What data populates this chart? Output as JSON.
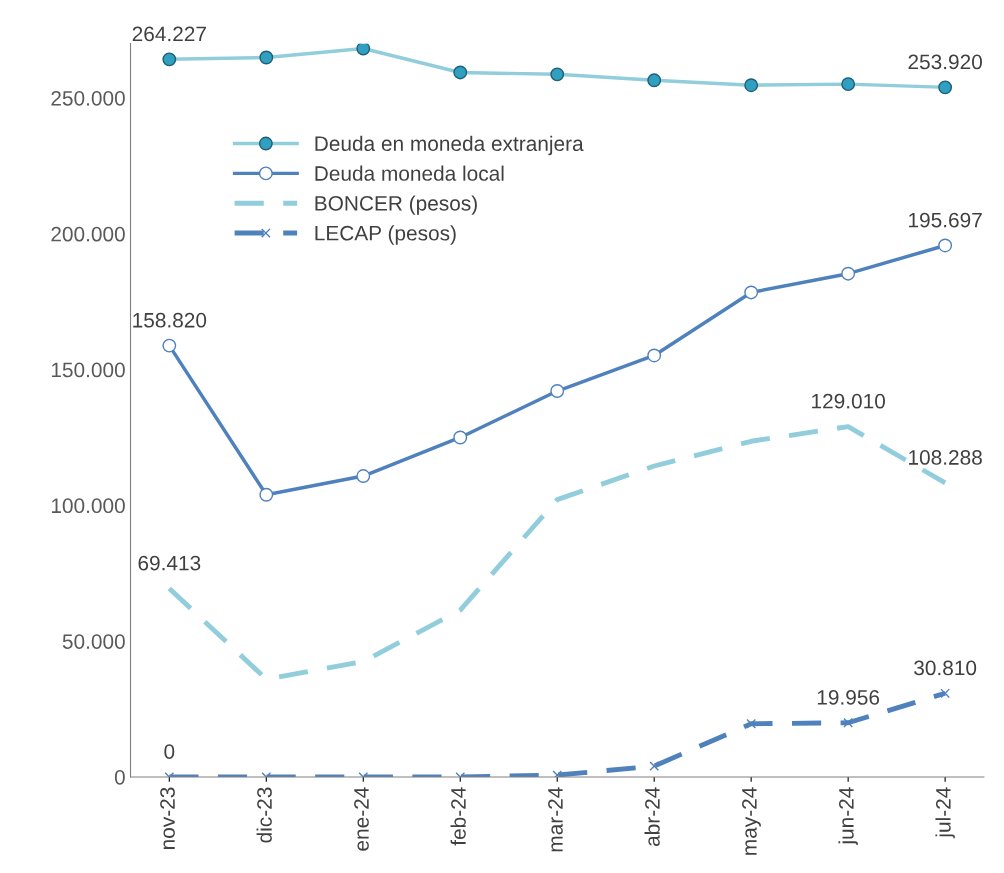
{
  "chart_data": {
    "type": "line",
    "categories": [
      "nov-23",
      "dic-23",
      "ene-24",
      "feb-24",
      "mar-24",
      "abr-24",
      "may-24",
      "jun-24",
      "jul-24"
    ],
    "series": [
      {
        "name": "Deuda en moneda extranjera",
        "color": "#92cddc",
        "marker": "circle",
        "line_style": "solid",
        "values": [
          264227,
          264900,
          268200,
          259400,
          258700,
          256500,
          254700,
          255100,
          253920
        ],
        "value_labels": [
          "264.227",
          null,
          null,
          null,
          null,
          null,
          null,
          null,
          "253.920"
        ]
      },
      {
        "name": "Deuda moneda local",
        "color": "#4f81bd",
        "marker": "circle",
        "line_style": "solid",
        "values": [
          158820,
          103900,
          110800,
          125000,
          142100,
          155200,
          178400,
          185300,
          195697
        ],
        "value_labels": [
          "158.820",
          null,
          null,
          null,
          null,
          null,
          null,
          null,
          "195.697"
        ]
      },
      {
        "name": "BONCER (pesos)",
        "color": "#92cddc",
        "marker": "none",
        "line_style": "dashed",
        "values": [
          69413,
          36000,
          42500,
          61400,
          102100,
          114500,
          123600,
          129010,
          108288
        ],
        "value_labels": [
          "69.413",
          null,
          null,
          null,
          null,
          null,
          null,
          "129.010",
          "108.288"
        ]
      },
      {
        "name": "LECAP (pesos)",
        "color": "#4f81bd",
        "marker": "cross",
        "line_style": "dashed",
        "values": [
          0,
          0,
          0,
          0,
          700,
          4000,
          19600,
          19956,
          30810
        ],
        "value_labels": [
          "0",
          null,
          null,
          null,
          null,
          null,
          null,
          "19.956",
          "30.810"
        ]
      }
    ],
    "ylim": [
      0,
      270000
    ],
    "yticks": [
      {
        "value": 0,
        "label": "0"
      },
      {
        "value": 50000,
        "label": "50.000"
      },
      {
        "value": 100000,
        "label": "100.000"
      },
      {
        "value": 150000,
        "label": "150.000"
      },
      {
        "value": 200000,
        "label": "200.000"
      },
      {
        "value": 250000,
        "label": "250.000"
      }
    ],
    "grid": false,
    "legend": "top left"
  }
}
